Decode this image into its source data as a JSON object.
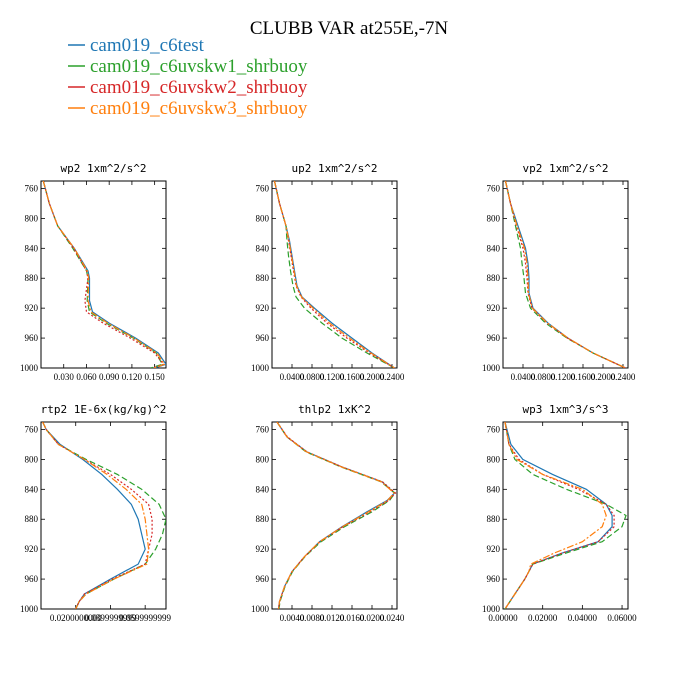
{
  "figure": {
    "title": "CLUBB VAR at255E,-7N"
  },
  "legend": [
    {
      "name": "cam019_c6test",
      "color": "#1f77b4",
      "dash": "solid"
    },
    {
      "name": "cam019_c6uvskw1_shrbuoy",
      "color": "#2ca02c",
      "dash": "dashed"
    },
    {
      "name": "cam019_c6uvskw2_shrbuoy",
      "color": "#d62728",
      "dash": "dotted"
    },
    {
      "name": "cam019_c6uvskw3_shrbuoy",
      "color": "#ff7f0e",
      "dash": "dashdot"
    }
  ],
  "chart_data": [
    {
      "type": "line",
      "title": "wp2  1xm^2/s^2",
      "xlim": [
        0.0,
        0.165
      ],
      "ylim": [
        1000,
        750
      ],
      "yticks": [
        760,
        800,
        840,
        880,
        920,
        960,
        1000
      ],
      "xticks": [
        0.03,
        0.06,
        0.09,
        0.12,
        0.15
      ],
      "xticklabels": [
        "0.030",
        "0.060",
        "0.090",
        "0.120",
        "0.150"
      ],
      "y": [
        750,
        780,
        810,
        840,
        870,
        880,
        910,
        925,
        940,
        960,
        980,
        995,
        1000
      ],
      "series": [
        {
          "values": [
            0.003,
            0.011,
            0.022,
            0.044,
            0.062,
            0.064,
            0.064,
            0.068,
            0.09,
            0.125,
            0.155,
            0.165,
            0.15
          ]
        },
        {
          "values": [
            0.003,
            0.011,
            0.022,
            0.042,
            0.06,
            0.062,
            0.061,
            0.064,
            0.086,
            0.122,
            0.152,
            0.16,
            0.145
          ]
        },
        {
          "values": [
            0.003,
            0.011,
            0.022,
            0.043,
            0.06,
            0.062,
            0.058,
            0.06,
            0.082,
            0.118,
            0.15,
            0.162,
            0.148
          ]
        },
        {
          "values": [
            0.003,
            0.011,
            0.022,
            0.044,
            0.061,
            0.063,
            0.062,
            0.066,
            0.088,
            0.123,
            0.153,
            0.163,
            0.149
          ]
        }
      ]
    },
    {
      "type": "line",
      "title": "up2  1xm^2/s^2",
      "xlim": [
        0.0,
        0.25
      ],
      "ylim": [
        1000,
        750
      ],
      "yticks": [
        760,
        800,
        840,
        880,
        920,
        960,
        1000
      ],
      "xticks": [
        0.04,
        0.08,
        0.12,
        0.16,
        0.2,
        0.24
      ],
      "xticklabels": [
        "0.0400",
        "0.0800",
        "0.1200",
        "0.1600",
        "0.2000",
        "0.2400"
      ],
      "y": [
        750,
        780,
        810,
        830,
        850,
        870,
        890,
        905,
        920,
        940,
        960,
        980,
        1000
      ],
      "series": [
        {
          "values": [
            0.005,
            0.015,
            0.028,
            0.035,
            0.04,
            0.045,
            0.05,
            0.06,
            0.085,
            0.12,
            0.16,
            0.2,
            0.245
          ]
        },
        {
          "values": [
            0.005,
            0.015,
            0.028,
            0.03,
            0.033,
            0.037,
            0.042,
            0.048,
            0.065,
            0.1,
            0.14,
            0.19,
            0.245
          ]
        },
        {
          "values": [
            0.005,
            0.015,
            0.028,
            0.033,
            0.038,
            0.043,
            0.048,
            0.058,
            0.078,
            0.11,
            0.15,
            0.195,
            0.245
          ]
        },
        {
          "values": [
            0.005,
            0.015,
            0.028,
            0.034,
            0.039,
            0.044,
            0.049,
            0.059,
            0.082,
            0.115,
            0.155,
            0.198,
            0.245
          ]
        }
      ]
    },
    {
      "type": "line",
      "title": "vp2  1xm^2/s^2",
      "xlim": [
        0.0,
        0.25
      ],
      "ylim": [
        1000,
        750
      ],
      "yticks": [
        760,
        800,
        840,
        880,
        920,
        960,
        1000
      ],
      "xticks": [
        0.04,
        0.08,
        0.12,
        0.16,
        0.2,
        0.24
      ],
      "xticklabels": [
        "0.0400",
        "0.0800",
        "0.1200",
        "0.1600",
        "0.2000",
        "0.2400"
      ],
      "y": [
        750,
        780,
        810,
        840,
        860,
        880,
        900,
        920,
        940,
        960,
        980,
        1000
      ],
      "series": [
        {
          "values": [
            0.005,
            0.015,
            0.03,
            0.045,
            0.05,
            0.052,
            0.052,
            0.06,
            0.09,
            0.13,
            0.18,
            0.245
          ]
        },
        {
          "values": [
            0.005,
            0.015,
            0.025,
            0.035,
            0.038,
            0.042,
            0.045,
            0.055,
            0.085,
            0.128,
            0.18,
            0.245
          ]
        },
        {
          "values": [
            0.005,
            0.015,
            0.027,
            0.04,
            0.045,
            0.048,
            0.05,
            0.058,
            0.088,
            0.129,
            0.18,
            0.245
          ]
        },
        {
          "values": [
            0.005,
            0.015,
            0.028,
            0.043,
            0.048,
            0.05,
            0.051,
            0.059,
            0.089,
            0.13,
            0.18,
            0.245
          ]
        }
      ]
    },
    {
      "type": "line",
      "title": "rtp2  1E-6x(kg/kg)^2",
      "xlim": [
        0.0,
        0.072
      ],
      "ylim": [
        1000,
        750
      ],
      "yticks": [
        760,
        800,
        840,
        880,
        920,
        960,
        1000
      ],
      "xticks": [
        0.02,
        0.04,
        0.06
      ],
      "xticklabels": [
        "0.0200000000",
        "0.0399999999",
        "0.0599999999"
      ],
      "y": [
        750,
        760,
        780,
        800,
        820,
        840,
        860,
        880,
        900,
        920,
        940,
        960,
        980,
        990,
        1000
      ],
      "series": [
        {
          "values": [
            0.001,
            0.003,
            0.011,
            0.024,
            0.035,
            0.044,
            0.052,
            0.056,
            0.058,
            0.06,
            0.056,
            0.04,
            0.025,
            0.022,
            0.02
          ]
        },
        {
          "values": [
            0.001,
            0.003,
            0.01,
            0.026,
            0.044,
            0.058,
            0.068,
            0.072,
            0.07,
            0.066,
            0.06,
            0.042,
            0.026,
            0.022,
            0.02
          ]
        },
        {
          "values": [
            0.001,
            0.003,
            0.01,
            0.025,
            0.04,
            0.052,
            0.062,
            0.064,
            0.064,
            0.062,
            0.06,
            0.041,
            0.025,
            0.022,
            0.02
          ]
        },
        {
          "values": [
            0.001,
            0.003,
            0.01,
            0.025,
            0.038,
            0.049,
            0.058,
            0.06,
            0.061,
            0.062,
            0.061,
            0.042,
            0.026,
            0.022,
            0.02
          ]
        }
      ]
    },
    {
      "type": "line",
      "title": "thlp2  1xK^2",
      "xlim": [
        0.0,
        0.025
      ],
      "ylim": [
        1000,
        750
      ],
      "yticks": [
        760,
        800,
        840,
        880,
        920,
        960,
        1000
      ],
      "xticks": [
        0.004,
        0.008,
        0.012,
        0.016,
        0.02,
        0.024
      ],
      "xticklabels": [
        "0.0040",
        "0.0080",
        "0.0120",
        "0.0160",
        "0.0200",
        "0.0240"
      ],
      "y": [
        750,
        770,
        790,
        810,
        830,
        845,
        855,
        870,
        890,
        910,
        930,
        950,
        970,
        990,
        1000
      ],
      "series": [
        {
          "values": [
            0.001,
            0.003,
            0.007,
            0.014,
            0.022,
            0.0245,
            0.023,
            0.019,
            0.014,
            0.0095,
            0.0065,
            0.004,
            0.0025,
            0.0015,
            0.0013
          ]
        },
        {
          "values": [
            0.001,
            0.003,
            0.0068,
            0.0138,
            0.0218,
            0.0246,
            0.0235,
            0.02,
            0.0145,
            0.0098,
            0.0066,
            0.0041,
            0.0026,
            0.0016,
            0.0014
          ]
        },
        {
          "values": [
            0.001,
            0.0031,
            0.007,
            0.014,
            0.0221,
            0.0247,
            0.0233,
            0.0196,
            0.0142,
            0.0096,
            0.0065,
            0.004,
            0.0025,
            0.0015,
            0.0013
          ]
        },
        {
          "values": [
            0.001,
            0.003,
            0.0069,
            0.0139,
            0.0219,
            0.0244,
            0.0231,
            0.0193,
            0.0141,
            0.0095,
            0.0065,
            0.004,
            0.0025,
            0.0015,
            0.0013
          ]
        }
      ]
    },
    {
      "type": "line",
      "title": "wp3  1xm^3/s^3",
      "xlim": [
        0.0,
        0.063
      ],
      "ylim": [
        1000,
        750
      ],
      "yticks": [
        760,
        800,
        840,
        880,
        920,
        960,
        1000
      ],
      "xticks": [
        0.0,
        0.02,
        0.04,
        0.06
      ],
      "xticklabels": [
        "0.00000",
        "0.02000",
        "0.04000",
        "0.06000"
      ],
      "y": [
        750,
        780,
        800,
        820,
        840,
        860,
        875,
        890,
        910,
        925,
        940,
        950,
        960,
        980,
        1000
      ],
      "series": [
        {
          "values": [
            0.001,
            0.004,
            0.01,
            0.025,
            0.042,
            0.052,
            0.055,
            0.055,
            0.048,
            0.03,
            0.015,
            0.013,
            0.011,
            0.006,
            0.001
          ]
        },
        {
          "values": [
            0.001,
            0.003,
            0.006,
            0.015,
            0.032,
            0.052,
            0.062,
            0.06,
            0.05,
            0.032,
            0.015,
            0.013,
            0.011,
            0.006,
            0.001
          ]
        },
        {
          "values": [
            0.001,
            0.003,
            0.008,
            0.02,
            0.038,
            0.052,
            0.056,
            0.056,
            0.048,
            0.03,
            0.015,
            0.013,
            0.011,
            0.006,
            0.001
          ]
        },
        {
          "values": [
            0.001,
            0.003,
            0.007,
            0.02,
            0.04,
            0.05,
            0.052,
            0.05,
            0.04,
            0.026,
            0.014,
            0.013,
            0.011,
            0.006,
            0.001
          ]
        }
      ]
    }
  ]
}
